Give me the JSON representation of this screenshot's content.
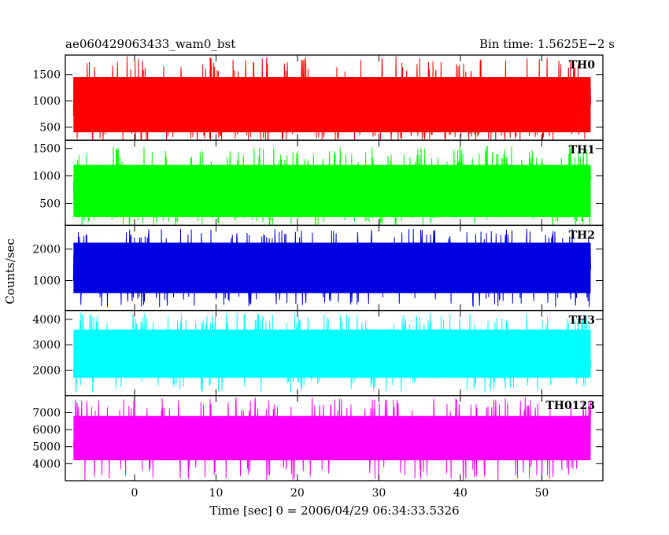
{
  "header": {
    "title": "ae060429063433_wam0_bst",
    "bin_time": "Bin time: 1.5625E−2 s"
  },
  "chart_data": {
    "type": "line",
    "xlabel": "Time [sec] 0 = 2006/04/29 06:34:33.5326",
    "ylabel": "Counts/sec",
    "xlim": [
      -8.5,
      57.5
    ],
    "x_ticks": [
      0,
      10,
      20,
      30,
      40,
      50
    ],
    "x_tick_labels": [
      "0",
      "10",
      "20",
      "30",
      "40",
      "50"
    ],
    "data_range": [
      -7.5,
      56
    ],
    "bin_time": 0.015625,
    "grid": false,
    "panels": [
      {
        "name": "TH0",
        "color": "#ff0000",
        "ylim": [
          250,
          1870
        ],
        "y_ticks": [
          500,
          1000,
          1500
        ],
        "y_tick_labels": [
          "500",
          "1000",
          "1500"
        ],
        "band": [
          400,
          1450
        ],
        "peak_range": [
          1550,
          1850
        ],
        "dip_range": [
          180,
          380
        ]
      },
      {
        "name": "TH1",
        "color": "#00ff00",
        "ylim": [
          100,
          1650
        ],
        "y_ticks": [
          500,
          1000,
          1500
        ],
        "y_tick_labels": [
          "500",
          "1000",
          "1500"
        ],
        "band": [
          250,
          1200
        ],
        "peak_range": [
          1250,
          1550
        ],
        "dip_range": [
          90,
          250
        ]
      },
      {
        "name": "TH2",
        "color": "#0000e0",
        "ylim": [
          50,
          2750
        ],
        "y_ticks": [
          1000,
          2000
        ],
        "y_tick_labels": [
          "1000",
          "2000"
        ],
        "band": [
          600,
          2200
        ],
        "peak_range": [
          2300,
          2650
        ],
        "dip_range": [
          150,
          500
        ]
      },
      {
        "name": "TH3",
        "color": "#00ffff",
        "ylim": [
          1000,
          4350
        ],
        "y_ticks": [
          2000,
          3000,
          4000
        ],
        "y_tick_labels": [
          "2000",
          "3000",
          "4000"
        ],
        "band": [
          1700,
          3600
        ],
        "peak_range": [
          3800,
          4250
        ],
        "dip_range": [
          1100,
          1600
        ]
      },
      {
        "name": "TH0123",
        "color": "#ff00ff",
        "ylim": [
          3000,
          8000
        ],
        "y_ticks": [
          4000,
          5000,
          6000,
          7000
        ],
        "y_tick_labels": [
          "4000",
          "5000",
          "6000",
          "7000"
        ],
        "band": [
          4200,
          6800
        ],
        "peak_range": [
          7100,
          7900
        ],
        "dip_range": [
          3000,
          3800
        ]
      }
    ]
  }
}
